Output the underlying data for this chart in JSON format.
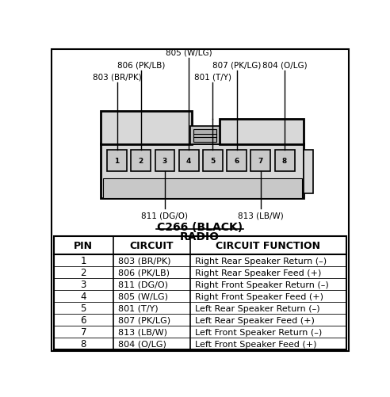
{
  "title_line1": "C266 (BLACK)",
  "title_line2": "RADIO",
  "pins": [
    1,
    2,
    3,
    4,
    5,
    6,
    7,
    8
  ],
  "circuits": [
    "803 (BR/PK)",
    "806 (PK/LB)",
    "811 (DG/O)",
    "805 (W/LG)",
    "801 (T/Y)",
    "807 (PK/LG)",
    "813 (LB/W)",
    "804 (O/LG)"
  ],
  "functions": [
    "Right Rear Speaker Return (–)",
    "Right Rear Speaker Feed (+)",
    "Right Front Speaker Return (–)",
    "Right Front Speaker Feed (+)",
    "Left Rear Speaker Return (–)",
    "Left Rear Speaker Feed (+)",
    "Left Front Speaker Return (–)",
    "Left Front Speaker Feed (+)"
  ],
  "bg_color": "#ffffff",
  "border_color": "#000000"
}
